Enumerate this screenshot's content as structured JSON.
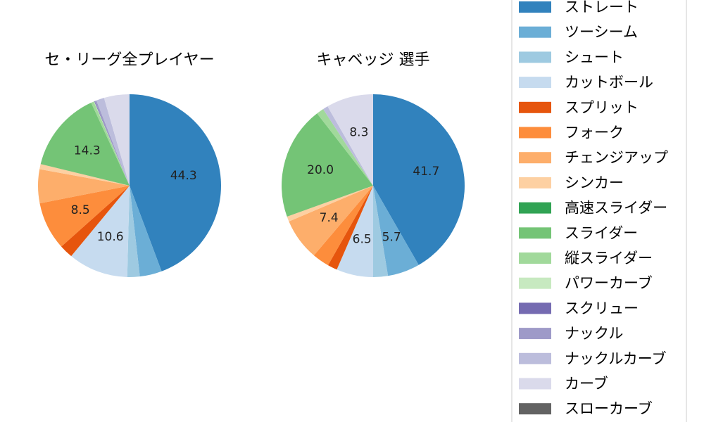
{
  "chart_data": [
    {
      "type": "pie",
      "title": "セ・リーグ全プレイヤー",
      "slices": [
        {
          "name": "ストレート",
          "value": 44.3,
          "label": "44.3",
          "color": "#3182bd"
        },
        {
          "name": "ツーシーム",
          "value": 3.9,
          "label": "",
          "color": "#6baed6"
        },
        {
          "name": "シュート",
          "value": 2.2,
          "label": "",
          "color": "#9ecae1"
        },
        {
          "name": "カットボール",
          "value": 10.6,
          "label": "10.6",
          "color": "#c6dbef"
        },
        {
          "name": "スプリット",
          "value": 2.4,
          "label": "",
          "color": "#e6550d"
        },
        {
          "name": "フォーク",
          "value": 8.5,
          "label": "8.5",
          "color": "#fd8d3c"
        },
        {
          "name": "チェンジアップ",
          "value": 6.0,
          "label": "",
          "color": "#fdae6b"
        },
        {
          "name": "シンカー",
          "value": 0.9,
          "label": "",
          "color": "#fdd0a2"
        },
        {
          "name": "高速スライダー",
          "value": 0.0,
          "label": "",
          "color": "#31a354"
        },
        {
          "name": "スライダー",
          "value": 14.3,
          "label": "14.3",
          "color": "#74c476"
        },
        {
          "name": "縦スライダー",
          "value": 0.5,
          "label": "",
          "color": "#a1d99b"
        },
        {
          "name": "パワーカーブ",
          "value": 0.1,
          "label": "",
          "color": "#c7e9c0"
        },
        {
          "name": "スクリュー",
          "value": 0.1,
          "label": "",
          "color": "#756bb1"
        },
        {
          "name": "ナックル",
          "value": 0.3,
          "label": "",
          "color": "#9e9ac8"
        },
        {
          "name": "ナックルカーブ",
          "value": 1.4,
          "label": "",
          "color": "#bcbddc"
        },
        {
          "name": "カーブ",
          "value": 4.5,
          "label": "",
          "color": "#dadaeb"
        },
        {
          "name": "スローカーブ",
          "value": 0.0,
          "label": "",
          "color": "#636363"
        }
      ]
    },
    {
      "type": "pie",
      "title": "キャベッジ  選手",
      "slices": [
        {
          "name": "ストレート",
          "value": 41.7,
          "label": "41.7",
          "color": "#3182bd"
        },
        {
          "name": "ツーシーム",
          "value": 5.7,
          "label": "5.7",
          "color": "#6baed6"
        },
        {
          "name": "シュート",
          "value": 2.6,
          "label": "",
          "color": "#9ecae1"
        },
        {
          "name": "カットボール",
          "value": 6.5,
          "label": "6.5",
          "color": "#c6dbef"
        },
        {
          "name": "スプリット",
          "value": 1.7,
          "label": "",
          "color": "#e6550d"
        },
        {
          "name": "フォーク",
          "value": 3.0,
          "label": "",
          "color": "#fd8d3c"
        },
        {
          "name": "チェンジアップ",
          "value": 7.4,
          "label": "7.4",
          "color": "#fdae6b"
        },
        {
          "name": "シンカー",
          "value": 0.9,
          "label": "",
          "color": "#fdd0a2"
        },
        {
          "name": "高速スライダー",
          "value": 0.0,
          "label": "",
          "color": "#31a354"
        },
        {
          "name": "スライダー",
          "value": 20.0,
          "label": "20.0",
          "color": "#74c476"
        },
        {
          "name": "縦スライダー",
          "value": 1.3,
          "label": "",
          "color": "#a1d99b"
        },
        {
          "name": "パワーカーブ",
          "value": 0.0,
          "label": "",
          "color": "#c7e9c0"
        },
        {
          "name": "スクリュー",
          "value": 0.0,
          "label": "",
          "color": "#756bb1"
        },
        {
          "name": "ナックル",
          "value": 0.0,
          "label": "",
          "color": "#9e9ac8"
        },
        {
          "name": "ナックルカーブ",
          "value": 0.9,
          "label": "",
          "color": "#bcbddc"
        },
        {
          "name": "カーブ",
          "value": 8.3,
          "label": "8.3",
          "color": "#dadaeb"
        },
        {
          "name": "スローカーブ",
          "value": 0.0,
          "label": "",
          "color": "#636363"
        }
      ]
    }
  ],
  "legend": {
    "placement": "right",
    "entries": [
      {
        "label": "ストレート",
        "color": "#3182bd"
      },
      {
        "label": "ツーシーム",
        "color": "#6baed6"
      },
      {
        "label": "シュート",
        "color": "#9ecae1"
      },
      {
        "label": "カットボール",
        "color": "#c6dbef"
      },
      {
        "label": "スプリット",
        "color": "#e6550d"
      },
      {
        "label": "フォーク",
        "color": "#fd8d3c"
      },
      {
        "label": "チェンジアップ",
        "color": "#fdae6b"
      },
      {
        "label": "シンカー",
        "color": "#fdd0a2"
      },
      {
        "label": "高速スライダー",
        "color": "#31a354"
      },
      {
        "label": "スライダー",
        "color": "#74c476"
      },
      {
        "label": "縦スライダー",
        "color": "#a1d99b"
      },
      {
        "label": "パワーカーブ",
        "color": "#c7e9c0"
      },
      {
        "label": "スクリュー",
        "color": "#756bb1"
      },
      {
        "label": "ナックル",
        "color": "#9e9ac8"
      },
      {
        "label": "ナックルカーブ",
        "color": "#bcbddc"
      },
      {
        "label": "カーブ",
        "color": "#dadaeb"
      },
      {
        "label": "スローカーブ",
        "color": "#636363"
      }
    ]
  }
}
